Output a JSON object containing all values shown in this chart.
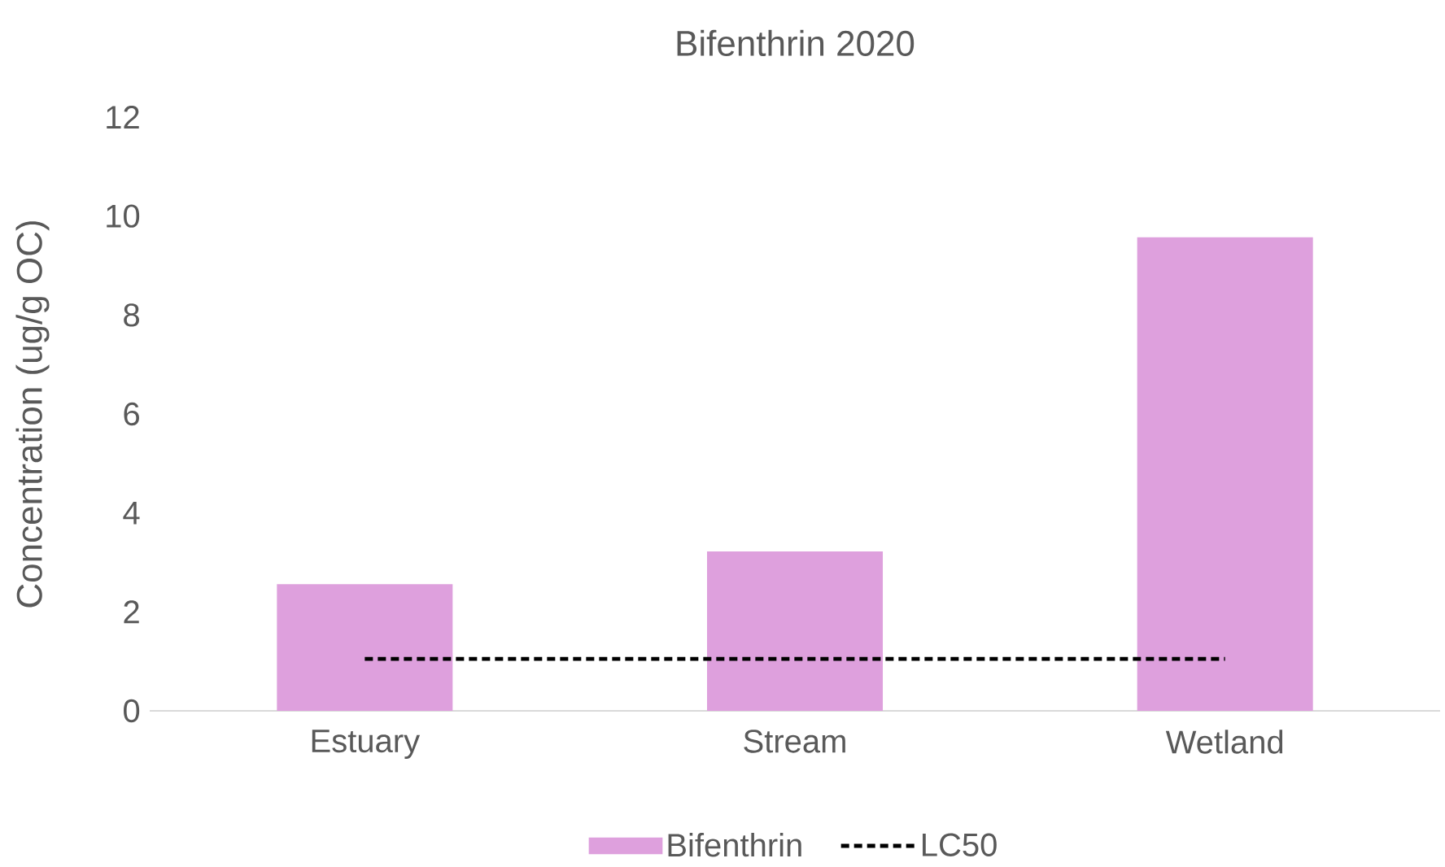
{
  "chart_data": {
    "type": "bar",
    "title": "Bifenthrin 2020",
    "ylabel": "Concentration (ug/g OC)",
    "categories": [
      "Estuary",
      "Stream",
      "Wetland"
    ],
    "series": [
      {
        "name": "Bifenthrin",
        "color": "#dea0dd",
        "values": [
          2.56,
          3.22,
          9.57
        ]
      },
      {
        "name": "LC50",
        "type": "line",
        "color": "#000000",
        "line_style": "dashed",
        "values": [
          1.05,
          1.05,
          1.05
        ]
      }
    ],
    "ylim": [
      0,
      12
    ],
    "yticks": [
      0,
      2,
      4,
      6,
      8,
      10,
      12
    ],
    "legend": "bottom"
  }
}
